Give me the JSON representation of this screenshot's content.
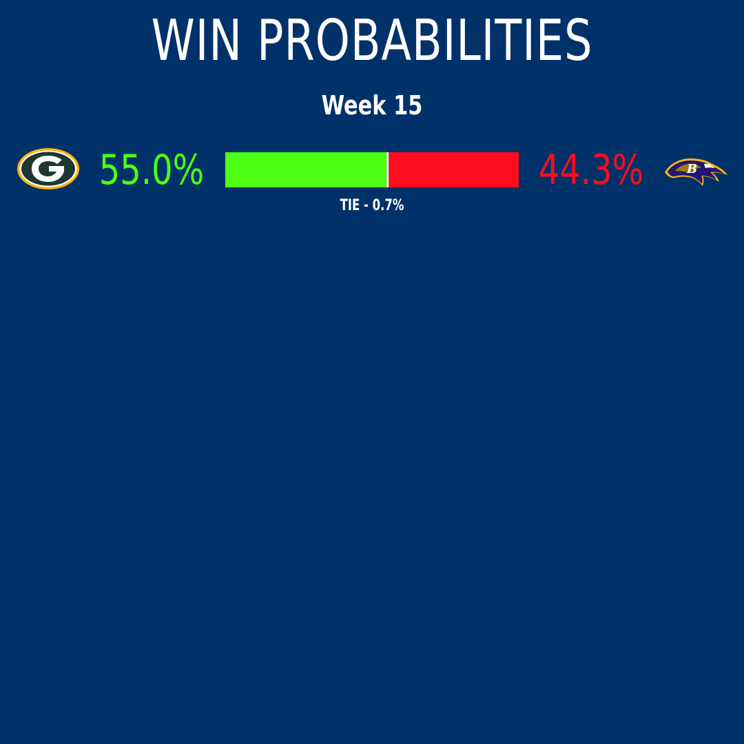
{
  "header": {
    "title": "WIN PROBABILITIES",
    "subtitle": "Week 15"
  },
  "matchup": {
    "left_team": {
      "logo_icon": "packers-g-logo",
      "probability_label": "55.0%",
      "color": "#4CFF14"
    },
    "right_team": {
      "logo_icon": "ravens-logo",
      "probability_label": "44.3%",
      "color": "#FF0D1F"
    },
    "tie_label": "TIE - 0.7%"
  },
  "colors": {
    "background": "#003269",
    "text": "#FFFFFF",
    "tie_divider": "#FFFFFF"
  },
  "chart_data": {
    "type": "bar",
    "orientation": "horizontal-stacked",
    "categories": [
      "Left team win",
      "Tie",
      "Right team win"
    ],
    "values": [
      55.0,
      0.7,
      44.3
    ],
    "colors": [
      "#4CFF14",
      "#FFFFFF",
      "#FF0D1F"
    ],
    "xlim": [
      0,
      100
    ],
    "title": "WIN PROBABILITIES",
    "subtitle": "Week 15"
  }
}
